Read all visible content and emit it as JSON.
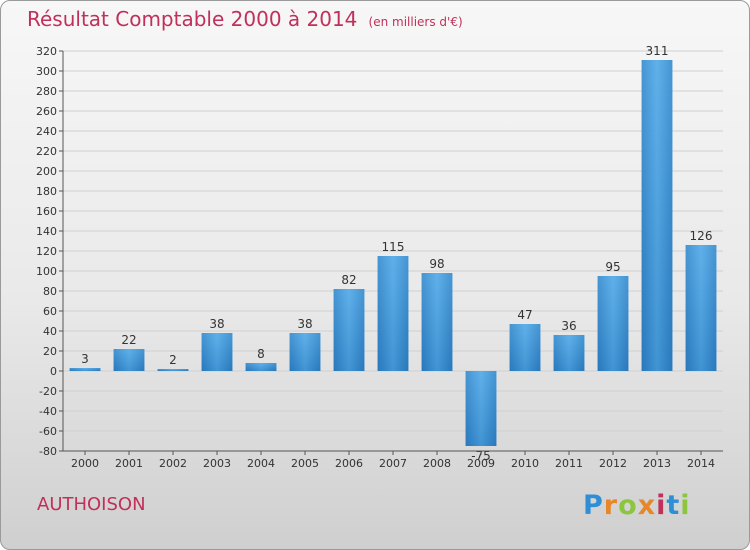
{
  "title": "Résultat Comptable 2000 à 2014",
  "unit": "(en milliers d'€)",
  "town": "AUTHOISON",
  "logo": {
    "letters": [
      "P",
      "r",
      "o",
      "x",
      "i",
      "t",
      "i"
    ],
    "colors": [
      "#2f8fd6",
      "#e8872a",
      "#8cc63f",
      "#e8872a",
      "#c0305a",
      "#2f8fd6",
      "#8cc63f"
    ]
  },
  "chart_data": {
    "type": "bar",
    "categories": [
      "2000",
      "2001",
      "2002",
      "2003",
      "2004",
      "2005",
      "2006",
      "2007",
      "2008",
      "2009",
      "2010",
      "2011",
      "2012",
      "2013",
      "2014"
    ],
    "values": [
      3,
      22,
      2,
      38,
      8,
      38,
      82,
      115,
      98,
      -75,
      47,
      36,
      95,
      311,
      126
    ],
    "title": "Résultat Comptable 2000 à 2014",
    "ylim": [
      -80,
      320
    ],
    "yticks": [
      320,
      300,
      280,
      260,
      240,
      220,
      200,
      180,
      160,
      140,
      120,
      100,
      80,
      60,
      40,
      20,
      0,
      -20,
      -40,
      -60,
      -80
    ],
    "grid": true,
    "bar_color": "#3a93d6"
  }
}
